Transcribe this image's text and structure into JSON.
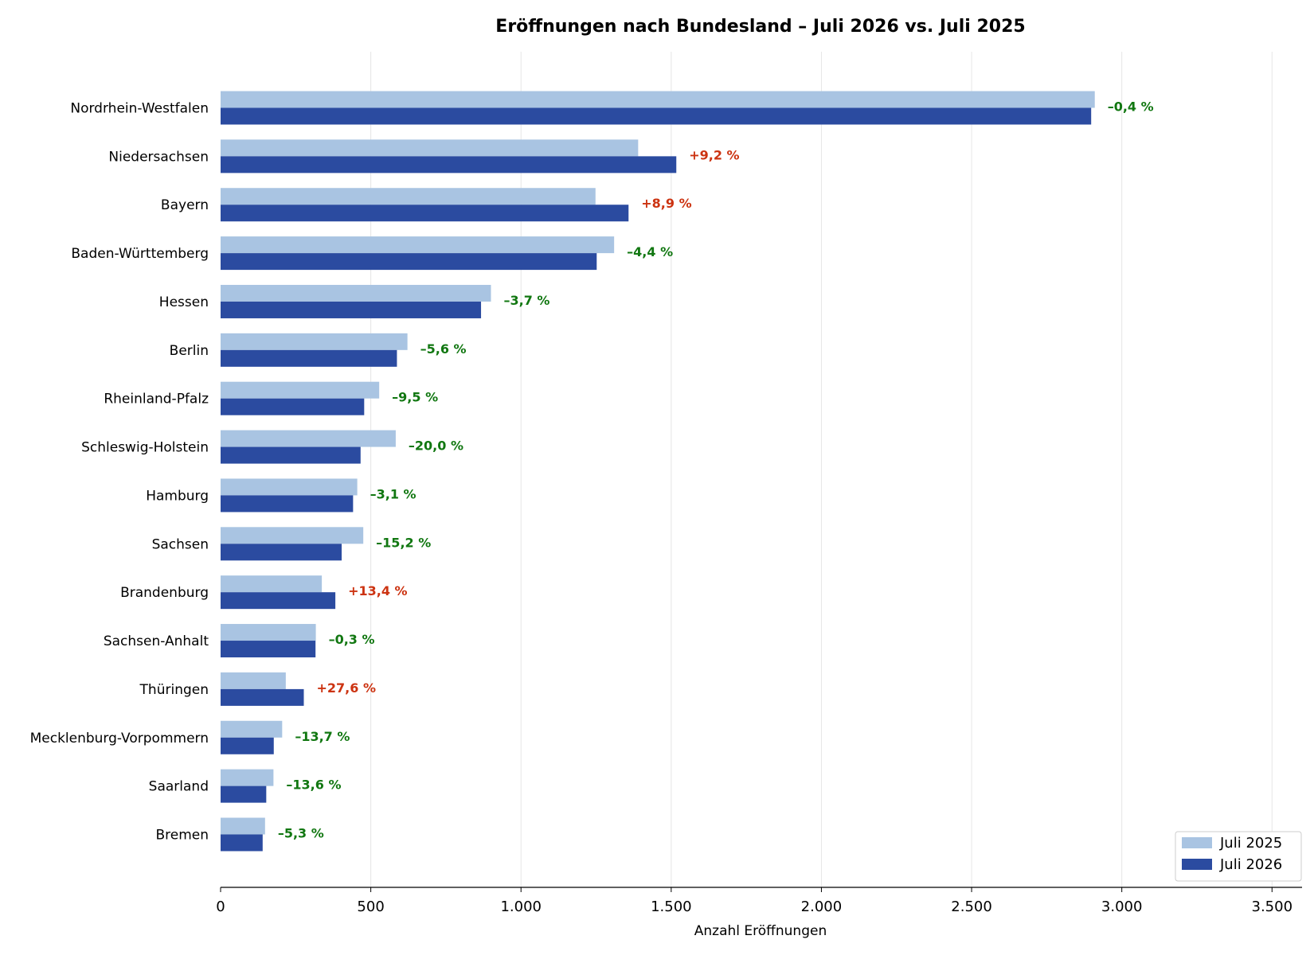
{
  "chart_data": {
    "type": "bar",
    "orientation": "horizontal",
    "title": "Eröffnungen nach Bundesland – Juli 2026 vs. Juli 2025",
    "xlabel": "Anzahl Eröffnungen",
    "ylabel": "",
    "xlim": [
      0,
      3600
    ],
    "xticks": [
      0,
      500,
      1000,
      1500,
      2000,
      2500,
      3000,
      3500
    ],
    "xtick_labels": [
      "0",
      "500",
      "1.000",
      "1.500",
      "2.000",
      "2.500",
      "3.000",
      "3.500"
    ],
    "grid": "vertical",
    "legend_position": "bottom-right",
    "categories": [
      "Nordrhein-Westfalen",
      "Niedersachsen",
      "Bayern",
      "Baden-Württemberg",
      "Hessen",
      "Berlin",
      "Rheinland-Pfalz",
      "Schleswig-Holstein",
      "Hamburg",
      "Sachsen",
      "Brandenburg",
      "Sachsen-Anhalt",
      "Thüringen",
      "Mecklenburg-Vorpommern",
      "Saarland",
      "Bremen"
    ],
    "series": [
      {
        "name": "Juli 2025",
        "color": "#a9c4e2",
        "values": [
          2910,
          1390,
          1248,
          1310,
          900,
          622,
          528,
          583,
          455,
          475,
          337,
          317,
          217,
          205,
          176,
          148
        ]
      },
      {
        "name": "Juli 2026",
        "color": "#2b4ba0",
        "values": [
          2898,
          1517,
          1358,
          1252,
          867,
          587,
          478,
          466,
          441,
          403,
          382,
          316,
          277,
          177,
          152,
          140
        ]
      }
    ],
    "change_labels": [
      "–0,4 %",
      "+9,2 %",
      "+8,9 %",
      "–4,4 %",
      "–3,7 %",
      "–5,6 %",
      "–9,5 %",
      "–20,0 %",
      "–3,1 %",
      "–15,2 %",
      "+13,4 %",
      "–0,3 %",
      "+27,6 %",
      "–13,7 %",
      "–13,6 %",
      "–5,3 %"
    ],
    "change_colors": {
      "increase": "#cc3311",
      "decrease": "#117711"
    }
  }
}
